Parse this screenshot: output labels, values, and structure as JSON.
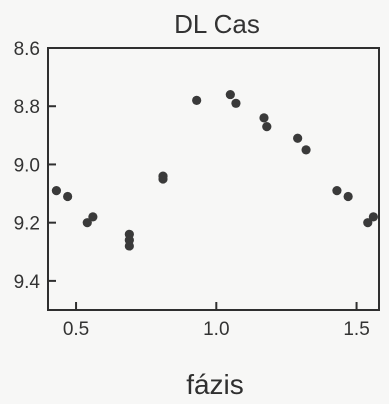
{
  "chart_data": {
    "type": "scatter",
    "title": "DL Cas",
    "xlabel": "fázis",
    "ylabel": "",
    "xlim": [
      0.4,
      1.58
    ],
    "ylim": [
      8.6,
      9.5
    ],
    "y_inverted": true,
    "grid": false,
    "xticks": [
      0.5,
      1.0,
      1.5
    ],
    "xtick_labels": [
      "0.5",
      "1.0",
      "1.5"
    ],
    "yticks": [
      8.6,
      8.8,
      9.0,
      9.2,
      9.4
    ],
    "ytick_labels": [
      "8.6",
      "8.8",
      "9.0",
      "9.2",
      "9.4"
    ],
    "point_color": "#3a3a3a",
    "series": [
      {
        "points": [
          [
            0.43,
            9.09
          ],
          [
            0.47,
            9.11
          ],
          [
            0.54,
            9.2
          ],
          [
            0.56,
            9.18
          ],
          [
            0.69,
            9.24
          ],
          [
            0.69,
            9.26
          ],
          [
            0.69,
            9.28
          ],
          [
            0.81,
            9.04
          ],
          [
            0.81,
            9.05
          ],
          [
            0.93,
            8.78
          ],
          [
            1.05,
            8.76
          ],
          [
            1.07,
            8.79
          ],
          [
            1.17,
            8.84
          ],
          [
            1.18,
            8.87
          ],
          [
            1.29,
            8.91
          ],
          [
            1.32,
            8.95
          ],
          [
            1.43,
            9.09
          ],
          [
            1.47,
            9.11
          ],
          [
            1.54,
            9.2
          ],
          [
            1.56,
            9.18
          ]
        ]
      }
    ]
  }
}
